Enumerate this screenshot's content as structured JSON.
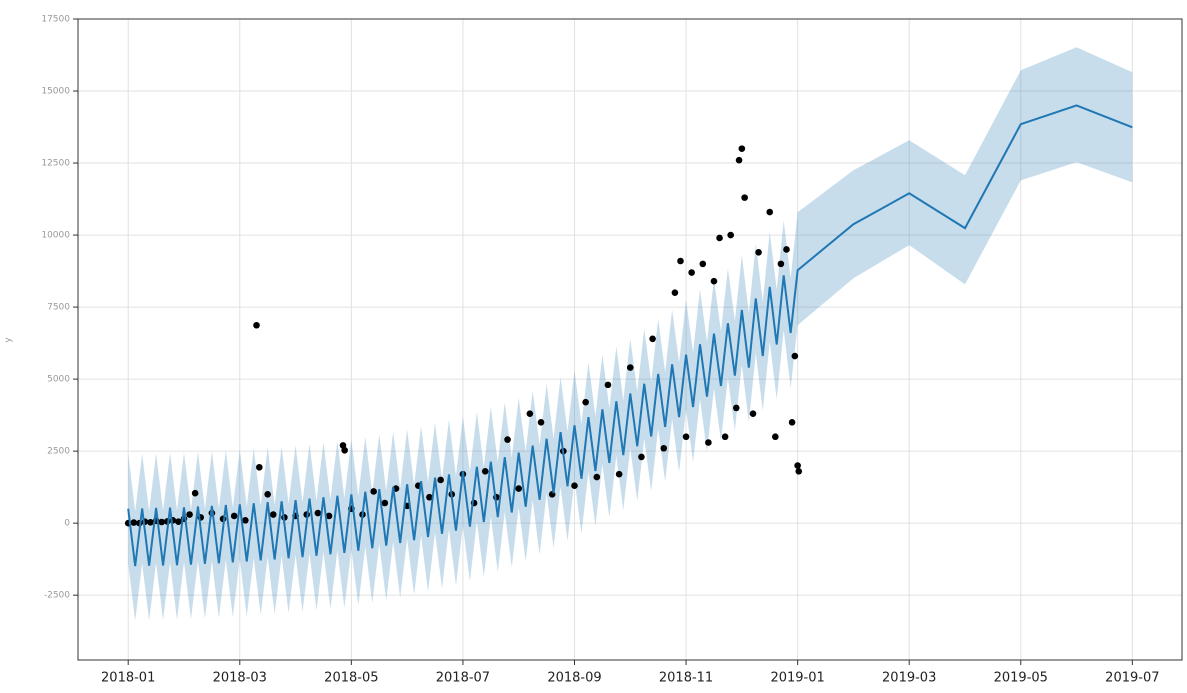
{
  "chart_data": {
    "type": "line",
    "ylabel": "y",
    "x": [
      0,
      0.125,
      0.25,
      0.375,
      0.5,
      0.625,
      0.75,
      0.875,
      1,
      1.125,
      1.25,
      1.375,
      1.5,
      1.625,
      1.75,
      1.875,
      2,
      2.125,
      2.25,
      2.375,
      2.5,
      2.625,
      2.75,
      2.875,
      3,
      3.125,
      3.25,
      3.375,
      3.5,
      3.625,
      3.75,
      3.875,
      4,
      4.125,
      4.25,
      4.375,
      4.5,
      4.625,
      4.75,
      4.875,
      5,
      5.125,
      5.25,
      5.375,
      5.5,
      5.625,
      5.75,
      5.875,
      6,
      6.125,
      6.25,
      6.375,
      6.5,
      6.625,
      6.75,
      6.875,
      7,
      7.125,
      7.25,
      7.375,
      7.5,
      7.625,
      7.75,
      7.875,
      8,
      8.125,
      8.25,
      8.375,
      8.5,
      8.625,
      8.75,
      8.875,
      9,
      9.125,
      9.25,
      9.375,
      9.5,
      9.625,
      9.75,
      9.875,
      10,
      10.125,
      10.25,
      10.375,
      10.5,
      10.625,
      10.75,
      10.875,
      11,
      11.125,
      11.25,
      11.375,
      11.5,
      11.625,
      11.75,
      11.875,
      12,
      13,
      14,
      15,
      16,
      17,
      18
    ],
    "values": [
      500,
      -1490,
      510,
      -1480,
      530,
      -1470,
      540,
      -1460,
      550,
      -1440,
      580,
      -1410,
      600,
      -1390,
      630,
      -1360,
      650,
      -1330,
      690,
      -1290,
      730,
      -1260,
      760,
      -1220,
      800,
      -1180,
      850,
      -1130,
      900,
      -1080,
      950,
      -1030,
      1000,
      -960,
      1090,
      -870,
      1180,
      -780,
      1260,
      -690,
      1350,
      -590,
      1460,
      -480,
      1580,
      -370,
      1690,
      -260,
      1800,
      -120,
      1960,
      40,
      2130,
      210,
      2290,
      370,
      2450,
      570,
      2690,
      810,
      2930,
      1040,
      3160,
      1280,
      3400,
      1540,
      3680,
      1810,
      3950,
      2090,
      4230,
      2360,
      4500,
      2670,
      4840,
      3010,
      5180,
      3340,
      5510,
      3680,
      5850,
      4030,
      6210,
      4390,
      6580,
      4760,
      6940,
      5120,
      7400,
      5400,
      7800,
      5800,
      8200,
      6200,
      8600,
      6600,
      8780,
      10375,
      11450,
      10240,
      13850,
      14500,
      13740
    ],
    "color": "#1f77b4",
    "band": {
      "color": "#1f77b4",
      "upper": [
        2400,
        410,
        2410,
        420,
        2430,
        430,
        2440,
        440,
        2450,
        460,
        2480,
        490,
        2500,
        510,
        2530,
        540,
        2550,
        570,
        2590,
        610,
        2630,
        640,
        2660,
        680,
        2700,
        720,
        2750,
        770,
        2800,
        820,
        2850,
        870,
        2900,
        940,
        2990,
        1030,
        3080,
        1120,
        3160,
        1210,
        3250,
        1310,
        3360,
        1420,
        3480,
        1530,
        3590,
        1640,
        3700,
        1780,
        3860,
        1940,
        4030,
        2110,
        4190,
        2270,
        4350,
        2470,
        4590,
        2710,
        4830,
        2940,
        5060,
        3180,
        5300,
        3440,
        5580,
        3710,
        5850,
        3990,
        6130,
        4260,
        6400,
        4570,
        6740,
        4910,
        7080,
        5240,
        7410,
        5580,
        7750,
        5930,
        8110,
        6290,
        8480,
        6660,
        8840,
        7020,
        9300,
        7300,
        9700,
        7700,
        10100,
        8100,
        10500,
        8500,
        10790,
        12250,
        13290,
        12075,
        15720,
        16520,
        15650
      ],
      "lower": [
        -1400,
        -3390,
        -1390,
        -3380,
        -1370,
        -3370,
        -1360,
        -3360,
        -1350,
        -3340,
        -1320,
        -3310,
        -1300,
        -3290,
        -1270,
        -3260,
        -1250,
        -3230,
        -1210,
        -3190,
        -1170,
        -3160,
        -1140,
        -3120,
        -1100,
        -3080,
        -1050,
        -3030,
        -1000,
        -2980,
        -950,
        -2930,
        -900,
        -2860,
        -810,
        -2770,
        -720,
        -2680,
        -640,
        -2590,
        -550,
        -2490,
        -440,
        -2380,
        -320,
        -2270,
        -210,
        -2160,
        -100,
        -2020,
        60,
        -1860,
        230,
        -1690,
        390,
        -1530,
        550,
        -1330,
        790,
        -1090,
        1030,
        -860,
        1260,
        -620,
        1500,
        -360,
        1780,
        -90,
        2050,
        190,
        2330,
        460,
        2600,
        770,
        2940,
        1110,
        3280,
        1440,
        3610,
        1780,
        3950,
        2130,
        4310,
        2490,
        4680,
        2860,
        5040,
        3220,
        5500,
        3500,
        5900,
        3900,
        6300,
        4300,
        6700,
        4700,
        6870,
        8500,
        9650,
        8290,
        11900,
        12530,
        11830
      ]
    },
    "scatter": {
      "color": "#000000",
      "x": [
        0,
        0.1,
        0.2,
        0.3,
        0.4,
        0.5,
        0.6,
        0.7,
        0.8,
        0.9,
        1.0,
        1.1,
        1.2,
        1.3,
        1.5,
        1.7,
        1.9,
        2.1,
        2.3,
        2.35,
        2.5,
        2.6,
        2.8,
        3.0,
        3.2,
        3.4,
        3.6,
        3.85,
        3.88,
        4.0,
        4.2,
        4.4,
        4.6,
        4.8,
        5.0,
        5.2,
        5.4,
        5.6,
        5.8,
        6.0,
        6.2,
        6.4,
        6.6,
        6.8,
        7.0,
        7.2,
        7.4,
        7.6,
        7.8,
        8.0,
        8.2,
        8.4,
        8.6,
        8.8,
        9.0,
        9.2,
        9.4,
        9.6,
        9.8,
        9.9,
        10.0,
        10.1,
        10.3,
        10.4,
        10.5,
        10.6,
        10.7,
        10.8,
        10.9,
        10.95,
        11.0,
        11.05,
        11.2,
        11.3,
        11.5,
        11.6,
        11.7,
        11.8,
        11.9,
        11.95,
        12.0,
        12.02
      ],
      "values": [
        0,
        20,
        0,
        50,
        30,
        80,
        40,
        60,
        100,
        50,
        150,
        300,
        1040,
        200,
        350,
        150,
        250,
        100,
        6870,
        1940,
        1000,
        300,
        200,
        250,
        300,
        350,
        250,
        2700,
        2530,
        500,
        300,
        1100,
        700,
        1200,
        600,
        1300,
        900,
        1500,
        1000,
        1700,
        700,
        1800,
        900,
        2900,
        1200,
        3800,
        3500,
        1000,
        2500,
        1300,
        4200,
        1600,
        4800,
        1700,
        5400,
        2300,
        6400,
        2600,
        8000,
        9100,
        3000,
        8700,
        9000,
        2800,
        8400,
        9900,
        3000,
        10000,
        4000,
        12600,
        13000,
        11300,
        3800,
        9400,
        10800,
        3000,
        9000,
        9500,
        3500,
        5800,
        2000,
        1800
      ]
    },
    "xlim": [
      -0.9,
      18.89
    ],
    "ylim": [
      -4750,
      17500
    ],
    "xticks": [
      {
        "value": 0,
        "label": "2018-01"
      },
      {
        "value": 2,
        "label": "2018-03"
      },
      {
        "value": 4,
        "label": "2018-05"
      },
      {
        "value": 6,
        "label": "2018-07"
      },
      {
        "value": 8,
        "label": "2018-09"
      },
      {
        "value": 10,
        "label": "2018-11"
      },
      {
        "value": 12,
        "label": "2019-01"
      },
      {
        "value": 14,
        "label": "2019-03"
      },
      {
        "value": 16,
        "label": "2019-05"
      },
      {
        "value": 18,
        "label": "2019-07"
      }
    ],
    "yticks": [
      -2500,
      0,
      2500,
      5000,
      7500,
      10000,
      12500,
      15000,
      17500
    ],
    "grid": true
  }
}
